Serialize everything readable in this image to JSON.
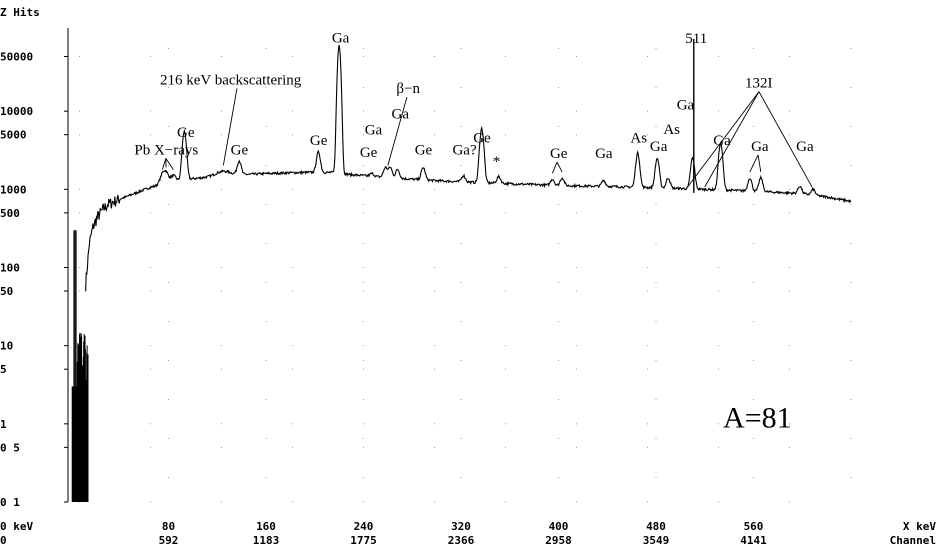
{
  "chart_data": {
    "type": "line",
    "ylabel": "Z Hits",
    "xlabel": "X keV",
    "xlabel2": "Channel",
    "x_start_label": "0 keV",
    "x_channel_start": "0",
    "xlim": [
      0,
      640
    ],
    "ylim": [
      0.1,
      100000
    ],
    "yscale": "log",
    "grid": "dotted",
    "y_ticks": [
      {
        "v": 50000,
        "label": "50000"
      },
      {
        "v": 10000,
        "label": "10000"
      },
      {
        "v": 5000,
        "label": "5000"
      },
      {
        "v": 1000,
        "label": "1000"
      },
      {
        "v": 500,
        "label": "500"
      },
      {
        "v": 100,
        "label": "100"
      },
      {
        "v": 50,
        "label": "50"
      },
      {
        "v": 10,
        "label": "10"
      },
      {
        "v": 5,
        "label": "5"
      },
      {
        "v": 1,
        "label": "1"
      },
      {
        "v": 0.5,
        "label": "0 5"
      },
      {
        "v": 0.1,
        "label": "0 1"
      }
    ],
    "x_ticks": [
      {
        "v": 80,
        "kev": "80",
        "ch": "592"
      },
      {
        "v": 160,
        "kev": "160",
        "ch": "1183"
      },
      {
        "v": 240,
        "kev": "240",
        "ch": "1775"
      },
      {
        "v": 320,
        "kev": "320",
        "ch": "2366"
      },
      {
        "v": 400,
        "kev": "400",
        "ch": "2958"
      },
      {
        "v": 480,
        "kev": "480",
        "ch": "3549"
      },
      {
        "v": 560,
        "kev": "560",
        "ch": "4141"
      }
    ],
    "continuum": [
      [
        2,
        0.1
      ],
      [
        5,
        1
      ],
      [
        8,
        5
      ],
      [
        10,
        20
      ],
      [
        12,
        60
      ],
      [
        15,
        200
      ],
      [
        18,
        330
      ],
      [
        22,
        450
      ],
      [
        26,
        550
      ],
      [
        30,
        640
      ],
      [
        35,
        700
      ],
      [
        40,
        750
      ],
      [
        45,
        800
      ],
      [
        50,
        860
      ],
      [
        55,
        920
      ],
      [
        60,
        990
      ],
      [
        65,
        1060
      ],
      [
        70,
        1110
      ],
      [
        75,
        1170
      ],
      [
        80,
        1220
      ],
      [
        90,
        1300
      ],
      [
        100,
        1370
      ],
      [
        110,
        1420
      ],
      [
        120,
        1470
      ],
      [
        140,
        1540
      ],
      [
        160,
        1590
      ],
      [
        180,
        1630
      ],
      [
        200,
        1650
      ],
      [
        215,
        1640
      ],
      [
        230,
        1540
      ],
      [
        250,
        1460
      ],
      [
        270,
        1380
      ],
      [
        300,
        1290
      ],
      [
        330,
        1230
      ],
      [
        360,
        1180
      ],
      [
        400,
        1120
      ],
      [
        440,
        1090
      ],
      [
        480,
        1050
      ],
      [
        520,
        1000
      ],
      [
        560,
        950
      ],
      [
        600,
        880
      ],
      [
        620,
        800
      ],
      [
        640,
        700
      ]
    ],
    "peaks": [
      {
        "x": 75,
        "y": 1500,
        "w": 2
      },
      {
        "x": 78,
        "y": 1600,
        "w": 2
      },
      {
        "x": 84,
        "y": 1500,
        "w": 2
      },
      {
        "x": 93,
        "y": 5500,
        "w": 1.5
      },
      {
        "x": 125,
        "y": 1700,
        "w": 6
      },
      {
        "x": 138,
        "y": 2300,
        "w": 1.5
      },
      {
        "x": 203,
        "y": 3000,
        "w": 1.5
      },
      {
        "x": 220,
        "y": 70000,
        "w": 1.2
      },
      {
        "x": 247,
        "y": 1600,
        "w": 1.5
      },
      {
        "x": 258,
        "y": 1900,
        "w": 1.5
      },
      {
        "x": 262,
        "y": 1900,
        "w": 1.5
      },
      {
        "x": 268,
        "y": 1800,
        "w": 1.5
      },
      {
        "x": 289,
        "y": 1900,
        "w": 1.5
      },
      {
        "x": 322,
        "y": 1500,
        "w": 1.5
      },
      {
        "x": 337,
        "y": 6000,
        "w": 1.5
      },
      {
        "x": 351,
        "y": 1450,
        "w": 1.5
      },
      {
        "x": 395,
        "y": 1350,
        "w": 1.5
      },
      {
        "x": 403,
        "y": 1400,
        "w": 1.5
      },
      {
        "x": 437,
        "y": 1300,
        "w": 1.5
      },
      {
        "x": 465,
        "y": 2900,
        "w": 1.5
      },
      {
        "x": 481,
        "y": 2500,
        "w": 1.5
      },
      {
        "x": 490,
        "y": 1400,
        "w": 1.5
      },
      {
        "x": 510,
        "y": 2500,
        "w": 1.5
      },
      {
        "x": 533,
        "y": 3900,
        "w": 1.5
      },
      {
        "x": 557,
        "y": 1400,
        "w": 1.5
      },
      {
        "x": 566,
        "y": 1400,
        "w": 1.5
      },
      {
        "x": 598,
        "y": 1100,
        "w": 1.5
      },
      {
        "x": 609,
        "y": 1000,
        "w": 1.5
      }
    ],
    "markers": [
      {
        "x": 511,
        "y": 100000
      }
    ],
    "annotations": [
      {
        "text": "Pb X−rays",
        "tx": 52,
        "ty": 2800,
        "targets": [
          [
            75,
            1500
          ],
          [
            78,
            1600
          ],
          [
            84,
            1500
          ]
        ]
      },
      {
        "text": "216 keV backscattering",
        "tx": 73,
        "ty": 22000,
        "targets": [
          [
            125,
            1700
          ]
        ]
      },
      {
        "text": "Ge",
        "tx": 87,
        "ty": 4700,
        "targets": []
      },
      {
        "text": "Ge",
        "tx": 131,
        "ty": 2800,
        "targets": []
      },
      {
        "text": "Ge",
        "tx": 196,
        "ty": 3700,
        "targets": []
      },
      {
        "text": "Ga",
        "tx": 214,
        "ty": 76000,
        "targets": []
      },
      {
        "text": "Ga",
        "tx": 241,
        "ty": 5000,
        "targets": []
      },
      {
        "text": "Ge",
        "tx": 237,
        "ty": 2600,
        "targets": []
      },
      {
        "text": "Ga",
        "tx": 263,
        "ty": 8000,
        "targets": []
      },
      {
        "text": "β−n",
        "tx": 267,
        "ty": 17000,
        "targets": [
          [
            260,
            1700
          ]
        ]
      },
      {
        "text": "Ge",
        "tx": 282,
        "ty": 2800,
        "targets": []
      },
      {
        "text": "Ga?",
        "tx": 313,
        "ty": 2800,
        "targets": []
      },
      {
        "text": "Ge",
        "tx": 330,
        "ty": 4000,
        "targets": []
      },
      {
        "text": "*",
        "tx": 346,
        "ty": 2000,
        "targets": []
      },
      {
        "text": "Ge",
        "tx": 393,
        "ty": 2500,
        "targets": [
          [
            395,
            1350
          ],
          [
            403,
            1400
          ]
        ]
      },
      {
        "text": "Ga",
        "tx": 430,
        "ty": 2500,
        "targets": []
      },
      {
        "text": "As",
        "tx": 459,
        "ty": 4000,
        "targets": []
      },
      {
        "text": "Ga",
        "tx": 475,
        "ty": 3100,
        "targets": []
      },
      {
        "text": "As",
        "tx": 486,
        "ty": 5100,
        "targets": []
      },
      {
        "text": "Ga",
        "tx": 497,
        "ty": 10500,
        "targets": []
      },
      {
        "text": "511",
        "tx": 504,
        "ty": 75000,
        "targets": []
      },
      {
        "text": "132I",
        "tx": 553,
        "ty": 20000,
        "targets": [
          [
            506,
            900
          ],
          [
            520,
            900
          ],
          [
            608,
            900
          ]
        ]
      },
      {
        "text": "Ga",
        "tx": 527,
        "ty": 3700,
        "targets": []
      },
      {
        "text": "Ga",
        "tx": 558,
        "ty": 3100,
        "targets": [
          [
            557,
            1400
          ],
          [
            566,
            1400
          ]
        ]
      },
      {
        "text": "Ga",
        "tx": 595,
        "ty": 3100,
        "targets": []
      },
      {
        "text": "A=81",
        "tx": 535,
        "ty": 0.9,
        "targets": [],
        "big": true
      }
    ]
  }
}
